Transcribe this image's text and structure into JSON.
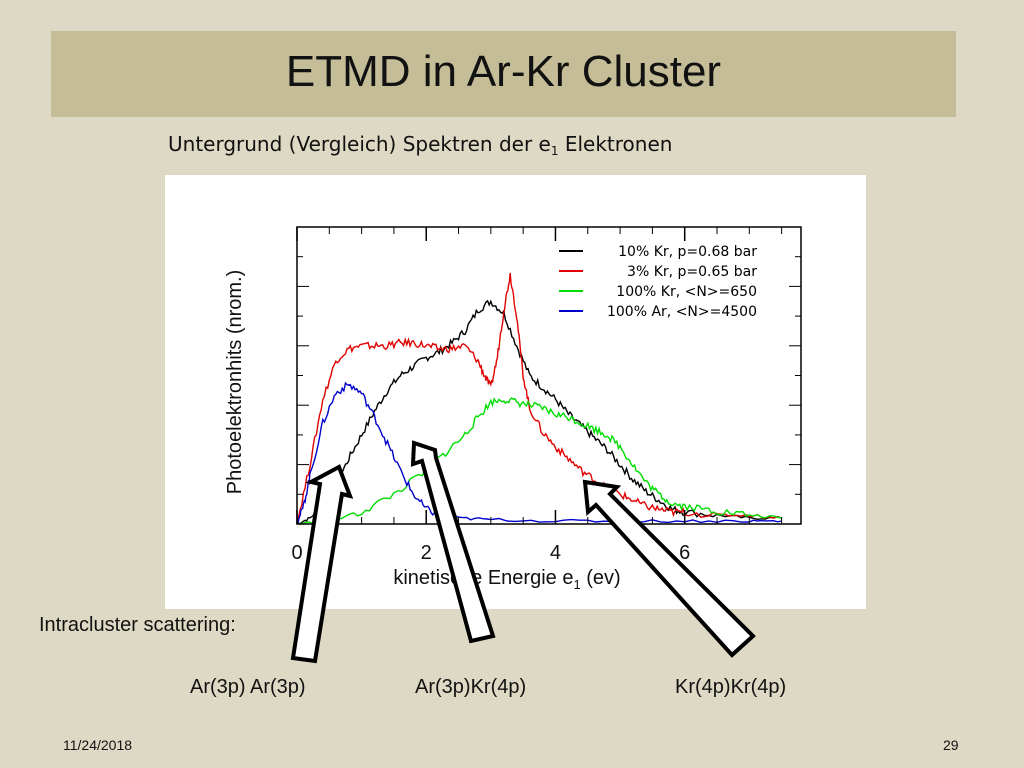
{
  "slide": {
    "title": "ETMD in Ar-Kr Cluster",
    "subtitle_main": "Untergrund (Vergleich) Spektren der e",
    "subtitle_sub": "1",
    "subtitle_tail": " Elektronen",
    "intracluster_label": "Intracluster scattering:",
    "arrow_labels": [
      "Ar(3p) Ar(3p)",
      "Ar(3p)Kr(4p)",
      "Kr(4p)Kr(4p)"
    ],
    "footer_date": "11/24/2018",
    "footer_page": "29"
  },
  "chart_data": {
    "type": "line",
    "xlabel_main": "kinetische Energie e",
    "xlabel_sub": "1",
    "xlabel_tail": " (ev)",
    "ylabel": "Photoelektronhits (nrom.)",
    "xlim": [
      0,
      7.8
    ],
    "ylim": [
      0,
      1.0
    ],
    "xticks": [
      "0",
      "2",
      "4",
      "6"
    ],
    "xtick_values": [
      0,
      2,
      4,
      6
    ],
    "legend_position": "top-right",
    "series": [
      {
        "name": "10% Kr, p=0.68 bar",
        "color": "#000000",
        "points": [
          [
            0,
            0.0
          ],
          [
            0.2,
            0.02
          ],
          [
            0.4,
            0.06
          ],
          [
            0.6,
            0.13
          ],
          [
            0.8,
            0.22
          ],
          [
            1.0,
            0.3
          ],
          [
            1.2,
            0.38
          ],
          [
            1.4,
            0.45
          ],
          [
            1.6,
            0.5
          ],
          [
            1.8,
            0.53
          ],
          [
            2.0,
            0.56
          ],
          [
            2.2,
            0.58
          ],
          [
            2.4,
            0.61
          ],
          [
            2.6,
            0.65
          ],
          [
            2.8,
            0.72
          ],
          [
            3.0,
            0.75
          ],
          [
            3.2,
            0.71
          ],
          [
            3.4,
            0.6
          ],
          [
            3.6,
            0.5
          ],
          [
            3.8,
            0.46
          ],
          [
            4.0,
            0.42
          ],
          [
            4.2,
            0.37
          ],
          [
            4.4,
            0.33
          ],
          [
            4.6,
            0.29
          ],
          [
            4.8,
            0.25
          ],
          [
            5.0,
            0.2
          ],
          [
            5.2,
            0.15
          ],
          [
            5.4,
            0.11
          ],
          [
            5.6,
            0.08
          ],
          [
            5.8,
            0.05
          ],
          [
            6.0,
            0.04
          ],
          [
            6.5,
            0.03
          ],
          [
            7.0,
            0.02
          ],
          [
            7.5,
            0.02
          ]
        ]
      },
      {
        "name": "3% Kr, p=0.65 bar",
        "color": "#e00000",
        "points": [
          [
            0,
            0.0
          ],
          [
            0.2,
            0.2
          ],
          [
            0.4,
            0.42
          ],
          [
            0.6,
            0.55
          ],
          [
            0.8,
            0.59
          ],
          [
            1.0,
            0.6
          ],
          [
            1.2,
            0.6
          ],
          [
            1.4,
            0.6
          ],
          [
            1.6,
            0.61
          ],
          [
            1.8,
            0.61
          ],
          [
            2.0,
            0.6
          ],
          [
            2.2,
            0.59
          ],
          [
            2.4,
            0.59
          ],
          [
            2.6,
            0.6
          ],
          [
            2.8,
            0.55
          ],
          [
            2.9,
            0.5
          ],
          [
            3.0,
            0.46
          ],
          [
            3.1,
            0.56
          ],
          [
            3.2,
            0.72
          ],
          [
            3.3,
            0.84
          ],
          [
            3.4,
            0.7
          ],
          [
            3.5,
            0.5
          ],
          [
            3.6,
            0.39
          ],
          [
            3.8,
            0.31
          ],
          [
            4.0,
            0.26
          ],
          [
            4.2,
            0.22
          ],
          [
            4.4,
            0.18
          ],
          [
            4.6,
            0.15
          ],
          [
            4.8,
            0.12
          ],
          [
            5.0,
            0.1
          ],
          [
            5.2,
            0.08
          ],
          [
            5.4,
            0.06
          ],
          [
            5.6,
            0.05
          ],
          [
            5.8,
            0.04
          ],
          [
            6.0,
            0.04
          ],
          [
            6.5,
            0.03
          ],
          [
            7.0,
            0.03
          ],
          [
            7.5,
            0.02
          ]
        ]
      },
      {
        "name": "100% Kr, <N>=650",
        "color": "#00dd00",
        "points": [
          [
            0,
            0.0
          ],
          [
            0.5,
            0.01
          ],
          [
            1.0,
            0.04
          ],
          [
            1.5,
            0.1
          ],
          [
            2.0,
            0.18
          ],
          [
            2.3,
            0.24
          ],
          [
            2.6,
            0.3
          ],
          [
            2.8,
            0.36
          ],
          [
            3.0,
            0.41
          ],
          [
            3.2,
            0.42
          ],
          [
            3.4,
            0.41
          ],
          [
            3.6,
            0.4
          ],
          [
            3.8,
            0.39
          ],
          [
            4.0,
            0.37
          ],
          [
            4.2,
            0.36
          ],
          [
            4.4,
            0.34
          ],
          [
            4.6,
            0.32
          ],
          [
            4.8,
            0.3
          ],
          [
            5.0,
            0.26
          ],
          [
            5.2,
            0.2
          ],
          [
            5.4,
            0.14
          ],
          [
            5.6,
            0.1
          ],
          [
            5.8,
            0.07
          ],
          [
            6.0,
            0.06
          ],
          [
            6.3,
            0.05
          ],
          [
            6.6,
            0.04
          ],
          [
            7.0,
            0.03
          ],
          [
            7.5,
            0.02
          ]
        ]
      },
      {
        "name": "100% Ar, <N>=4500",
        "color": "#0000cc",
        "points": [
          [
            0,
            0.0
          ],
          [
            0.1,
            0.06
          ],
          [
            0.2,
            0.16
          ],
          [
            0.4,
            0.34
          ],
          [
            0.6,
            0.44
          ],
          [
            0.8,
            0.47
          ],
          [
            1.0,
            0.44
          ],
          [
            1.2,
            0.36
          ],
          [
            1.4,
            0.27
          ],
          [
            1.6,
            0.18
          ],
          [
            1.8,
            0.1
          ],
          [
            2.0,
            0.05
          ],
          [
            2.2,
            0.03
          ],
          [
            2.5,
            0.02
          ],
          [
            3.0,
            0.015
          ],
          [
            4.0,
            0.01
          ],
          [
            5.0,
            0.01
          ],
          [
            6.0,
            0.01
          ],
          [
            7.0,
            0.01
          ],
          [
            7.5,
            0.01
          ]
        ]
      }
    ]
  }
}
